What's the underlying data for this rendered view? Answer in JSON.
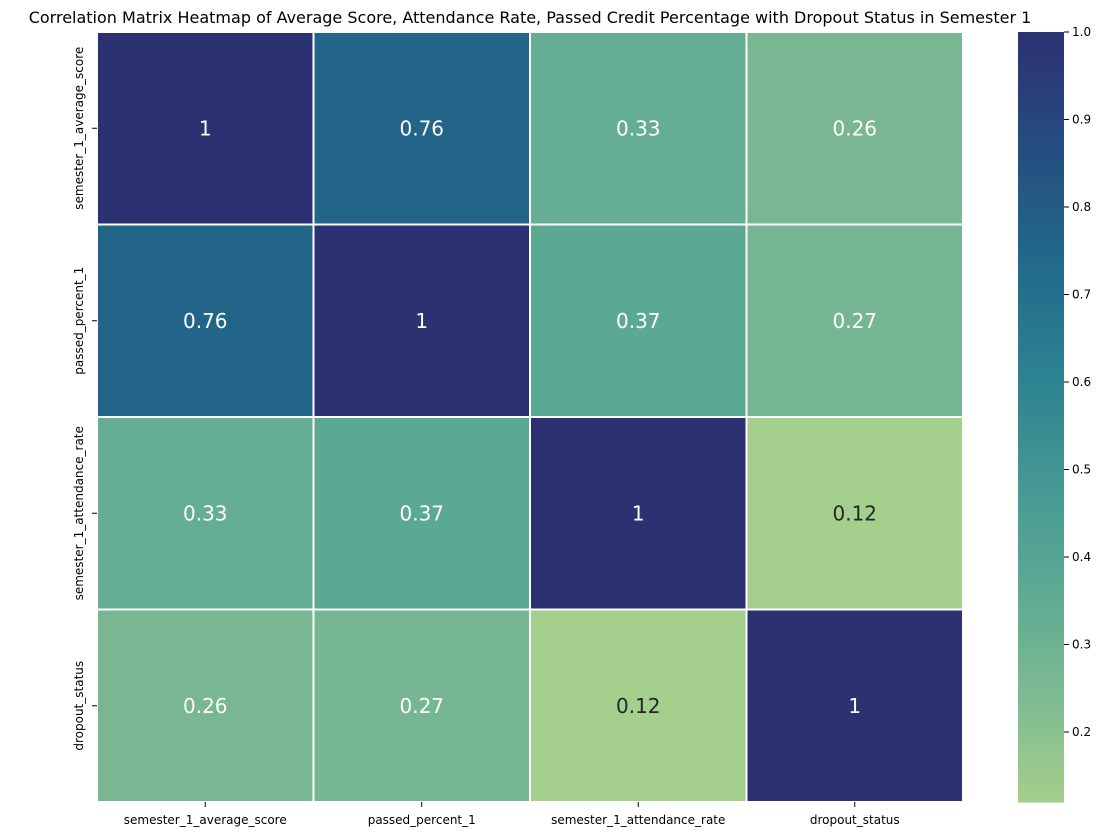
{
  "chart_data": {
    "type": "heatmap",
    "title": "Correlation Matrix Heatmap of Average Score, Attendance Rate, Passed Credit Percentage with Dropout Status in Semester 1",
    "xlabel": "",
    "ylabel": "",
    "x_categories": [
      "semester_1_average_score",
      "passed_percent_1",
      "semester_1_attendance_rate",
      "dropout_status"
    ],
    "y_categories": [
      "semester_1_average_score",
      "passed_percent_1",
      "semester_1_attendance_rate",
      "dropout_status"
    ],
    "values": [
      [
        1,
        0.76,
        0.33,
        0.26
      ],
      [
        0.76,
        1,
        0.37,
        0.27
      ],
      [
        0.33,
        0.37,
        1,
        0.12
      ],
      [
        0.26,
        0.27,
        0.12,
        1
      ]
    ],
    "annotations": [
      [
        "1",
        "0.76",
        "0.33",
        "0.26"
      ],
      [
        "0.76",
        "1",
        "0.37",
        "0.27"
      ],
      [
        "0.33",
        "0.37",
        "1",
        "0.12"
      ],
      [
        "0.26",
        "0.27",
        "0.12",
        "1"
      ]
    ],
    "colorbar": {
      "min": 0.12,
      "max": 1.0,
      "ticks": [
        0.2,
        0.3,
        0.4,
        0.5,
        0.6,
        0.7,
        0.8,
        0.9,
        1.0
      ],
      "tick_labels": [
        "0.2",
        "0.3",
        "0.4",
        "0.5",
        "0.6",
        "0.7",
        "0.8",
        "0.9",
        "1.0"
      ]
    },
    "colormap": "crest",
    "grid": false,
    "legend": "colorbar-right"
  },
  "colors": {
    "low": "#a5cf8c",
    "high": "#2c3172",
    "light_text": "#ffffff",
    "dark_text": "#262626",
    "cell_border": "#ffffff"
  }
}
